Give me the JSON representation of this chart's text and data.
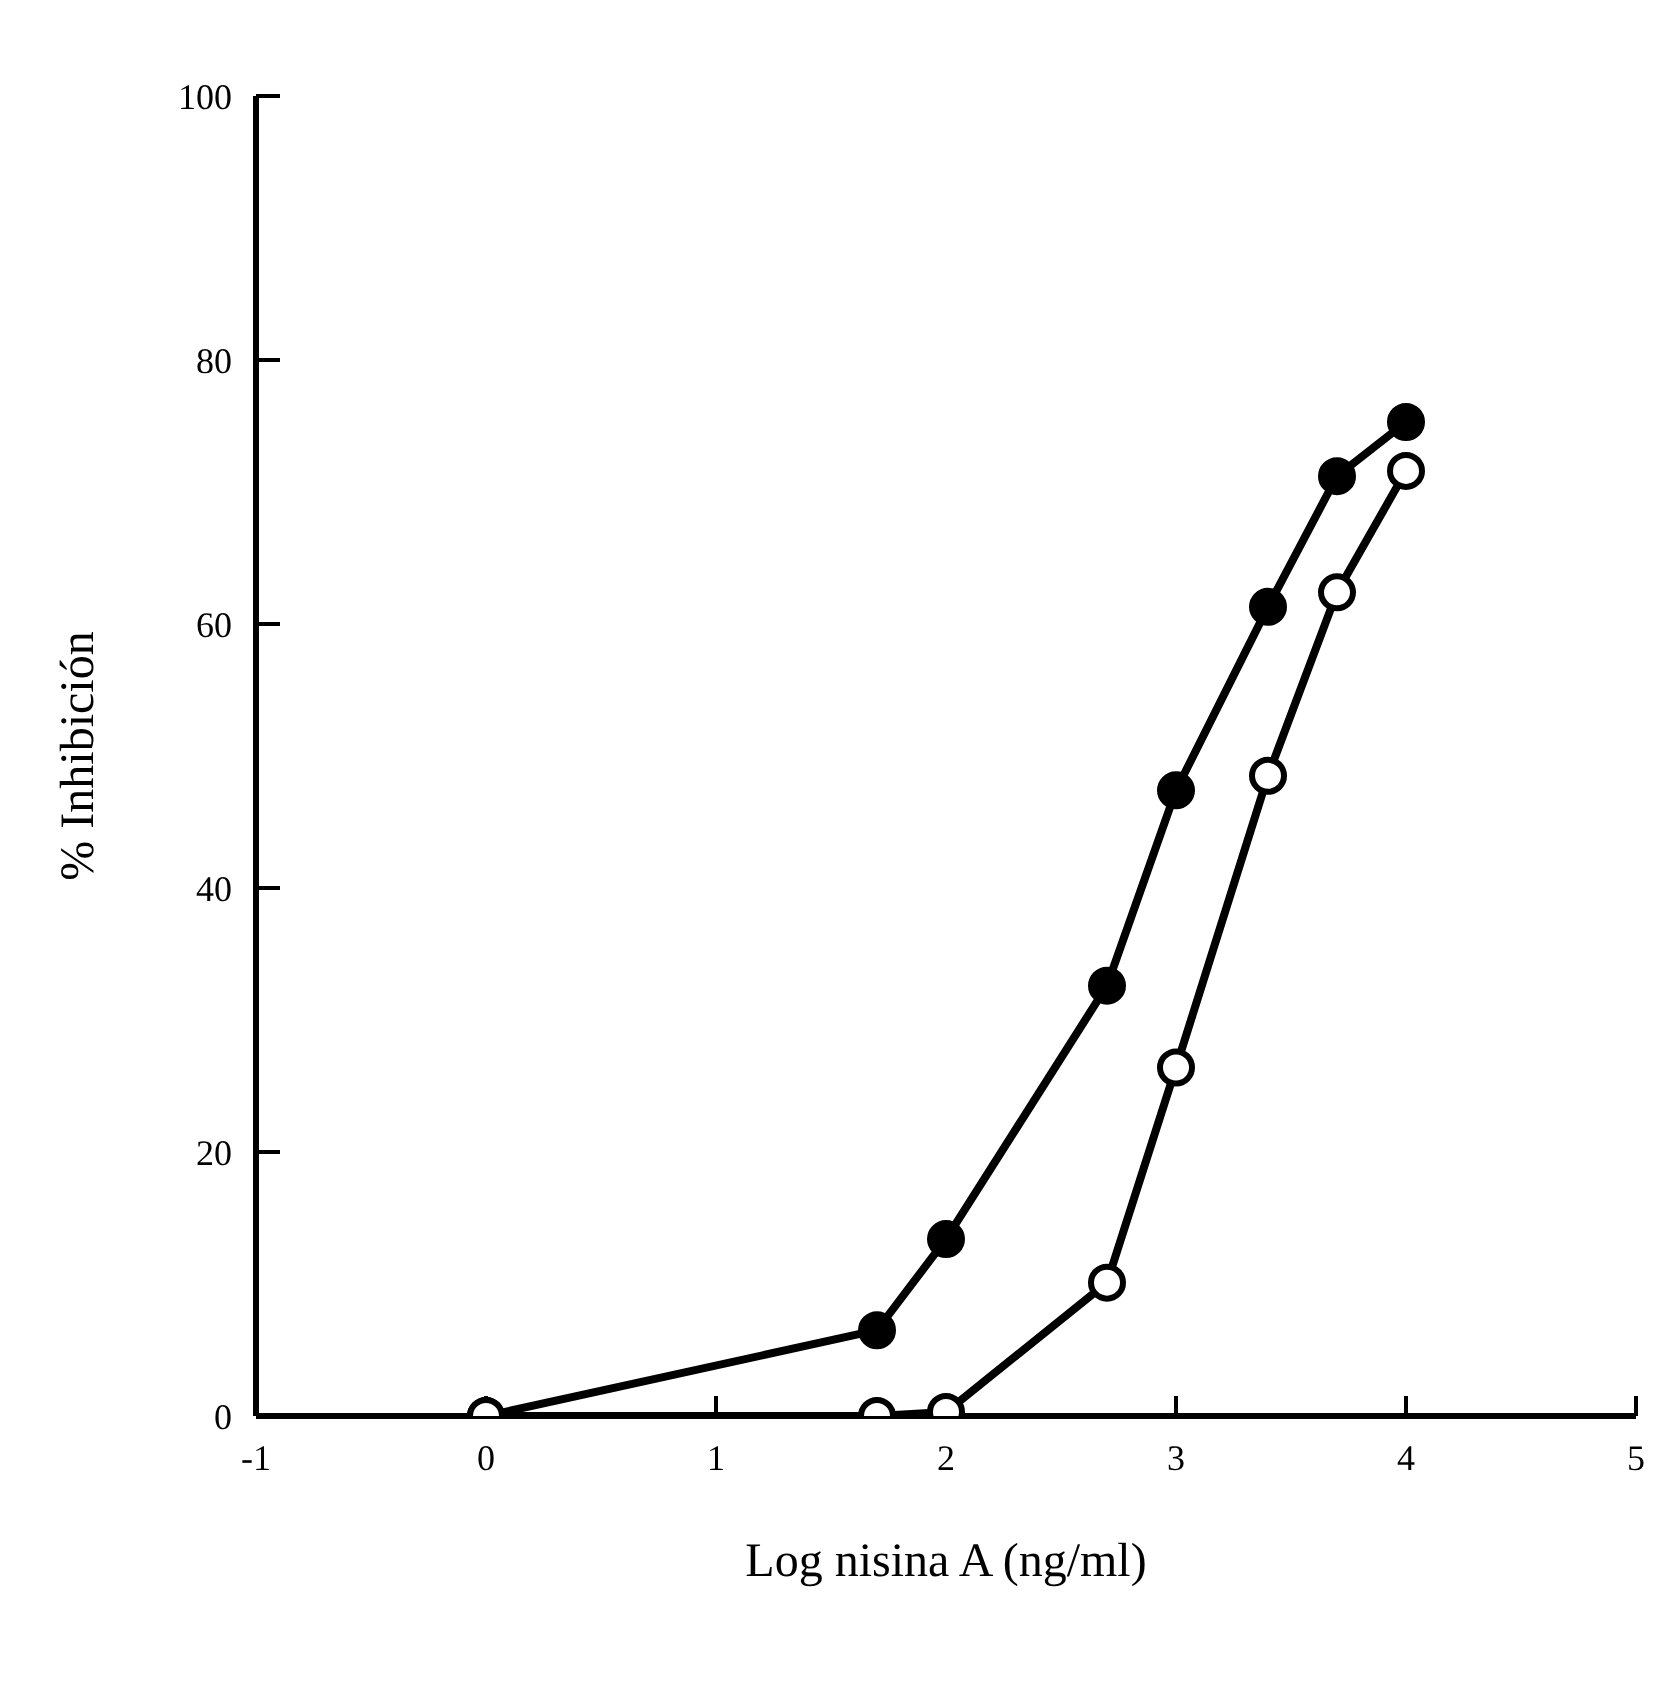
{
  "chart_data": {
    "type": "line",
    "xlabel": "Log nisina A (ng/ml)",
    "ylabel": "% Inhibición",
    "xlim": [
      -1,
      5
    ],
    "xticks": [
      -1,
      0,
      1,
      2,
      3,
      4,
      5
    ],
    "ylim": [
      0,
      100
    ],
    "yticks": [
      0,
      20,
      40,
      60,
      80,
      100
    ],
    "marker": "circle",
    "series": [
      {
        "x": [
          0,
          1.7,
          2,
          2.7,
          3,
          3.4,
          3.7,
          4
        ],
        "values": [
          0,
          6.5,
          13.4,
          32.6,
          47.4,
          61.3,
          71.2,
          75.3
        ],
        "color": "#000000"
      },
      {
        "x": [
          0,
          1.7,
          2,
          2.7,
          3,
          3.4,
          3.7,
          4
        ],
        "values": [
          0,
          0,
          0.3,
          10.1,
          26.4,
          48.5,
          62.4,
          71.6
        ],
        "color": "#000000"
      }
    ]
  }
}
